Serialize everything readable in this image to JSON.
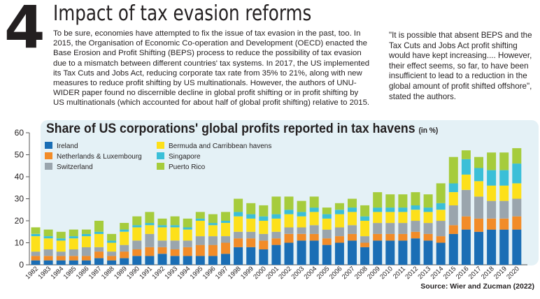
{
  "section_number": "4",
  "headline": "Impact of tax evasion reforms",
  "body": {
    "line_first": "To be sure, economies have attempted to fix the issue of tax evasion in the past, too. In",
    "rest": "2015, the Organisation of Economic Co-operation and Development (OECD) enacted the Base Erosion and Profit Shifting (BEPS) process to reduce the possibility of tax evasion due to a mismatch between different countries' tax systems. In 2017, the US implemented its Tax Cuts and Jobs Act, reducing corporate tax rate from 35% to 21%, along with new measures to reduce profit shifting by US multinationals. However, the authors of UNU-WIDER paper found no discernible decline in global profit shifting or in profit shifting by US multinationals (which accounted for about half of global profit shifting) relative to 2015."
  },
  "quote": "\"It is possible that absent BEPS and the Tax Cuts and Jobs Act profit shifting would have kept increasing.... However, their effect seems, so far, to have been insufficient to lead to a reduction in the global amount of profit shifted offshore\", stated the authors.",
  "source": "Source: Wier and Zucman (2022)",
  "colors": {
    "Ireland": "#1a6eb5",
    "Netherlands & Luxembourg": "#f28c28",
    "Switzerland": "#9aa5ad",
    "Bermuda and Carribbean havens": "#fde01a",
    "Singapore": "#3bbfd8",
    "Puerto Rico": "#a6cc3c",
    "panel": "#e4f1f6"
  },
  "chart_data": {
    "type": "bar",
    "stacked": true,
    "title": "Share of US corporations' global profits reported in tax havens",
    "unit_label": "(in %)",
    "xlabel": "",
    "ylabel": "",
    "ylim": [
      0,
      60
    ],
    "yticks": [
      0,
      10,
      20,
      30,
      40,
      50,
      60
    ],
    "grid": false,
    "legend_position": "top-left",
    "categories": [
      "1982",
      "1983",
      "1984",
      "1985",
      "1986",
      "1987",
      "1988",
      "1989",
      "1990",
      "1991",
      "1992",
      "1993",
      "1994",
      "1995",
      "1996",
      "1997",
      "1998",
      "1999",
      "2000",
      "2001",
      "2002",
      "2003",
      "2004",
      "2005",
      "2006",
      "2007",
      "2008",
      "2009",
      "2010",
      "2011",
      "2012",
      "2013",
      "2014",
      "2015",
      "2016",
      "2017",
      "2018",
      "2019",
      "2020"
    ],
    "series": [
      {
        "name": "Ireland",
        "values": [
          2,
          2,
          2,
          2,
          2,
          3,
          2,
          3,
          4,
          4,
          5,
          4,
          4,
          4,
          4,
          5,
          8,
          8,
          7,
          9,
          10,
          11,
          11,
          9,
          10,
          11,
          8,
          11,
          11,
          11,
          12,
          11,
          10,
          14,
          16,
          15,
          16,
          16,
          16
        ]
      },
      {
        "name": "Netherlands & Luxembourg",
        "values": [
          2,
          2,
          2,
          2,
          2,
          3,
          2,
          3,
          3,
          4,
          3,
          3,
          4,
          5,
          5,
          5,
          4,
          4,
          4,
          3,
          4,
          3,
          3,
          3,
          3,
          3,
          2,
          3,
          3,
          3,
          3,
          3,
          3,
          4,
          6,
          6,
          5,
          5,
          6
        ]
      },
      {
        "name": "Switzerland",
        "values": [
          2,
          3,
          2,
          3,
          4,
          2,
          2,
          3,
          4,
          6,
          3,
          4,
          3,
          4,
          4,
          3,
          3,
          3,
          3,
          3,
          3,
          3,
          4,
          4,
          4,
          4,
          3,
          5,
          5,
          5,
          5,
          5,
          7,
          9,
          12,
          10,
          8,
          8,
          8
        ]
      },
      {
        "name": "Bermuda and Carribbean havens",
        "values": [
          7,
          5,
          5,
          5,
          5,
          6,
          4,
          6,
          6,
          4,
          6,
          6,
          5,
          7,
          5,
          6,
          7,
          6,
          6,
          6,
          6,
          5,
          6,
          5,
          6,
          6,
          7,
          5,
          5,
          5,
          5,
          5,
          5,
          6,
          7,
          7,
          7,
          7,
          7
        ]
      },
      {
        "name": "Singapore",
        "values": [
          1,
          1,
          1,
          1,
          1,
          1,
          1,
          1,
          1,
          1,
          1,
          1,
          1,
          1,
          1,
          1,
          2,
          2,
          2,
          2,
          2,
          2,
          2,
          2,
          2,
          2,
          2,
          2,
          2,
          2,
          2,
          2,
          3,
          4,
          7,
          6,
          7,
          7,
          9
        ]
      },
      {
        "name": "Puerto Rico",
        "values": [
          3,
          3,
          3,
          3,
          2,
          5,
          3,
          3,
          4,
          5,
          3,
          4,
          4,
          3,
          4,
          4,
          6,
          5,
          5,
          8,
          6,
          5,
          5,
          3,
          3,
          4,
          5,
          7,
          6,
          6,
          6,
          6,
          9,
          12,
          4,
          5,
          8,
          8,
          7
        ]
      }
    ]
  }
}
